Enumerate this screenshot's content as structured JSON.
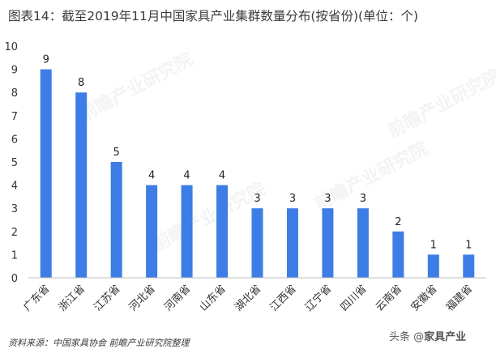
{
  "chart_data": {
    "type": "bar",
    "title": "图表14：截至2019年11月中国家具产业集群数量分布(按省份)(单位：个)",
    "categories": [
      "广东省",
      "浙江省",
      "江苏省",
      "河北省",
      "河南省",
      "山东省",
      "湖北省",
      "江西省",
      "辽宁省",
      "四川省",
      "云南省",
      "安徽省",
      "福建省"
    ],
    "values": [
      9,
      8,
      5,
      4,
      4,
      4,
      3,
      3,
      3,
      3,
      2,
      1,
      1
    ],
    "ylim": [
      0,
      10
    ],
    "yticks": [
      0,
      1,
      2,
      3,
      4,
      5,
      6,
      7,
      8,
      9,
      10
    ],
    "xlabel": "",
    "ylabel": "",
    "grid": false,
    "bar_color": "#3d7de6"
  },
  "source": "资料来源：中国家具协会 前瞻产业研究院整理",
  "watermark": {
    "prefix": "头条 @",
    "brand": "家具产业",
    "faint_logo": "前瞻产业研究院"
  }
}
